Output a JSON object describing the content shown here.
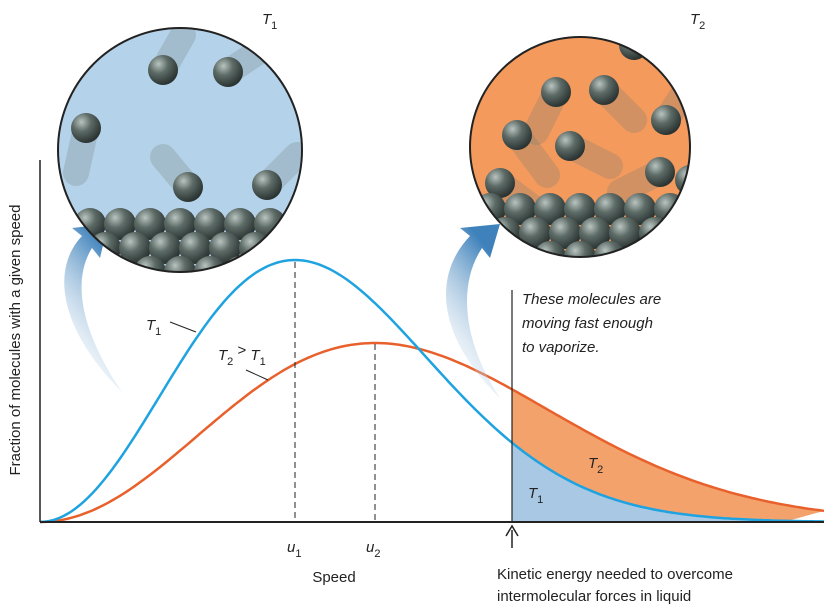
{
  "header": {
    "left_label": {
      "symbol": "T",
      "subscript": "1"
    },
    "right_label": {
      "symbol": "T",
      "subscript": "2"
    }
  },
  "axes": {
    "y_label": "Fraction of molecules with a given speed",
    "x_label": "Speed"
  },
  "markers": [
    {
      "symbol": "u",
      "subscript": "1"
    },
    {
      "symbol": "u",
      "subscript": "2"
    }
  ],
  "curve_labels": {
    "blue": {
      "symbol": "T",
      "subscript": "1"
    },
    "orange": {
      "symbol": "T",
      "subscript": "2",
      "relation": " > ",
      "symbol2": "T",
      "subscript2": "1"
    }
  },
  "area_labels": {
    "orange": {
      "symbol": "T",
      "subscript": "2"
    },
    "blue": {
      "symbol": "T",
      "subscript": "1"
    }
  },
  "annotation": [
    "These molecules are",
    "moving fast enough",
    "to vaporize."
  ],
  "threshold_caption": [
    "Kinetic energy needed to overcome",
    "intermolecular forces in liquid"
  ]
}
